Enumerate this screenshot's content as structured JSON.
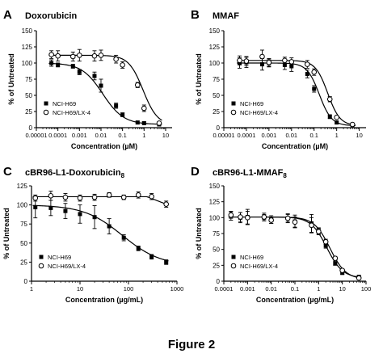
{
  "figure_caption": "Figure 2",
  "chart_data": [
    {
      "panel_letter": "A",
      "title_main": "Doxorubicin",
      "title_sub": "",
      "type": "scatter",
      "xlabel": "Concentration (µM)",
      "ylabel": "% of Untreated",
      "xscale": "log",
      "xlim": [
        1e-05,
        20
      ],
      "ylim": [
        0,
        150
      ],
      "xticks": [
        1e-05,
        0.0001,
        0.001,
        0.01,
        0.1,
        1,
        10
      ],
      "xtick_labels": [
        "0.00001",
        "0.0001",
        "0.001",
        "0.01",
        "0.1",
        "1",
        "10"
      ],
      "yticks": [
        0,
        25,
        50,
        75,
        100,
        125,
        150
      ],
      "ytick_labels": [
        "0",
        "25",
        "50",
        "75",
        "100",
        "125",
        "150"
      ],
      "legend_position": "bottom-left",
      "series": [
        {
          "name": "NCI-H69",
          "marker": "filled-square",
          "x": [
            5e-05,
            0.0001,
            0.0005,
            0.001,
            0.005,
            0.01,
            0.05,
            0.1,
            0.5,
            1,
            5
          ],
          "y": [
            100,
            97,
            95,
            86,
            80,
            65,
            34,
            20,
            8,
            7,
            5
          ],
          "err": [
            5,
            3,
            3,
            4,
            6,
            10,
            4,
            3,
            2,
            2,
            2
          ],
          "curve_ec50": 0.012,
          "curve_top": 100,
          "curve_bottom": 5,
          "curve_hill": 0.9
        },
        {
          "name": "NCI-H69/LX-4",
          "marker": "open-circle",
          "x": [
            5e-05,
            0.0001,
            0.0005,
            0.001,
            0.005,
            0.01,
            0.05,
            0.1,
            0.5,
            1,
            5
          ],
          "y": [
            113,
            111,
            110,
            112,
            111,
            112,
            106,
            97,
            66,
            30,
            7
          ],
          "err": [
            6,
            8,
            7,
            9,
            8,
            8,
            6,
            5,
            4,
            5,
            2
          ],
          "curve_ec50": 0.9,
          "curve_top": 112,
          "curve_bottom": 4,
          "curve_hill": 1.3
        }
      ]
    },
    {
      "panel_letter": "B",
      "title_main": "MMAF",
      "title_sub": "",
      "type": "scatter",
      "xlabel": "Concentration (µM)",
      "ylabel": "% of Untreated",
      "xscale": "log",
      "xlim": [
        1e-05,
        20
      ],
      "ylim": [
        0,
        150
      ],
      "xticks": [
        1e-05,
        0.0001,
        0.001,
        0.01,
        0.1,
        1,
        10
      ],
      "xtick_labels": [
        "0.00001",
        "0.0001",
        "0.001",
        "0.01",
        "0.1",
        "1",
        "10"
      ],
      "yticks": [
        0,
        25,
        50,
        75,
        100,
        125,
        150
      ],
      "ytick_labels": [
        "0",
        "25",
        "50",
        "75",
        "100",
        "125",
        "150"
      ],
      "legend_position": "bottom-left",
      "series": [
        {
          "name": "NCI-H69",
          "marker": "filled-square",
          "x": [
            5e-05,
            0.0001,
            0.0005,
            0.001,
            0.005,
            0.01,
            0.05,
            0.1,
            0.5,
            1,
            5
          ],
          "y": [
            100,
            101,
            98,
            100,
            97,
            95,
            83,
            60,
            17,
            8,
            4
          ],
          "err": [
            8,
            8,
            9,
            6,
            7,
            8,
            6,
            5,
            3,
            2,
            1
          ],
          "curve_ec50": 0.17,
          "curve_top": 100,
          "curve_bottom": 3,
          "curve_hill": 1.6
        },
        {
          "name": "NCI-H69/LX-4",
          "marker": "open-circle",
          "x": [
            5e-05,
            0.0001,
            0.0005,
            0.001,
            0.005,
            0.01,
            0.05,
            0.1,
            0.5,
            1,
            5
          ],
          "y": [
            104,
            103,
            110,
            101,
            104,
            102,
            98,
            86,
            44,
            16,
            5
          ],
          "err": [
            7,
            7,
            10,
            6,
            5,
            6,
            6,
            5,
            4,
            2,
            1
          ],
          "curve_ec50": 0.4,
          "curve_top": 104,
          "curve_bottom": 3,
          "curve_hill": 1.6
        }
      ]
    },
    {
      "panel_letter": "C",
      "title_main": "cBR96-L1-Doxorubicin",
      "title_sub": "8",
      "type": "scatter",
      "xlabel": "Concentration (µg/mL)",
      "ylabel": "% of Untreated",
      "xscale": "log",
      "xlim": [
        1,
        1000
      ],
      "ylim": [
        0,
        125
      ],
      "xticks": [
        1,
        10,
        100,
        1000
      ],
      "xtick_labels": [
        "1",
        "10",
        "100",
        "1000"
      ],
      "yticks": [
        0,
        25,
        50,
        75,
        100,
        125
      ],
      "ytick_labels": [
        "0",
        "25",
        "50",
        "75",
        "100",
        "125"
      ],
      "legend_position": "bottom-left",
      "series": [
        {
          "name": "NCI-H69",
          "marker": "filled-square",
          "x": [
            1.2,
            2.5,
            5,
            10,
            20,
            40,
            80,
            160,
            300,
            600
          ],
          "y": [
            97,
            96,
            92,
            88,
            84,
            72,
            57,
            43,
            32,
            25
          ],
          "err": [
            14,
            10,
            10,
            12,
            15,
            10,
            4,
            3,
            3,
            3
          ],
          "curve_ec50": 75,
          "curve_top": 100,
          "curve_bottom": 20,
          "curve_hill": 1.1
        },
        {
          "name": "NCI-H69/LX-4",
          "marker": "open-circle",
          "x": [
            1.2,
            2.5,
            5,
            10,
            20,
            40,
            80,
            160,
            300,
            600
          ],
          "y": [
            109,
            112,
            110,
            109,
            110,
            113,
            110,
            113,
            111,
            101
          ],
          "err": [
            4,
            6,
            5,
            4,
            4,
            3,
            3,
            4,
            4,
            4
          ],
          "curve": "flat"
        }
      ]
    },
    {
      "panel_letter": "D",
      "title_main": "cBR96-L1-MMAF",
      "title_sub": "8",
      "type": "scatter",
      "xlabel": "Concentration (µg/mL)",
      "ylabel": "% of Untreated",
      "xscale": "log",
      "xlim": [
        0.0001,
        100
      ],
      "ylim": [
        0,
        150
      ],
      "xticks": [
        0.0001,
        0.001,
        0.01,
        0.1,
        1,
        10,
        100
      ],
      "xtick_labels": [
        "0.0001",
        "0.001",
        "0.01",
        "0.1",
        "1",
        "10",
        "100"
      ],
      "yticks": [
        0,
        25,
        50,
        75,
        100,
        125,
        150
      ],
      "ytick_labels": [
        "0",
        "25",
        "50",
        "75",
        "100",
        "125",
        "150"
      ],
      "legend_position": "bottom-left",
      "series": [
        {
          "name": "NCI-H69",
          "marker": "filled-square",
          "x": [
            0.0002,
            0.0005,
            0.001,
            0.005,
            0.01,
            0.05,
            0.1,
            0.5,
            1,
            2,
            5,
            10,
            50
          ],
          "y": [
            103,
            100,
            101,
            100,
            97,
            99,
            94,
            91,
            79,
            56,
            28,
            13,
            7
          ],
          "err": [
            7,
            8,
            12,
            5,
            6,
            7,
            10,
            14,
            5,
            4,
            3,
            2,
            1
          ],
          "curve_ec50": 2.2,
          "curve_top": 101,
          "curve_bottom": 5,
          "curve_hill": 1.3
        },
        {
          "name": "NCI-H69/LX-4",
          "marker": "open-circle",
          "x": [
            0.0002,
            0.0005,
            0.001,
            0.005,
            0.01,
            0.05,
            0.1,
            0.5,
            1,
            2,
            5,
            10,
            50
          ],
          "y": [
            104,
            101,
            100,
            101,
            96,
            99,
            93,
            88,
            78,
            62,
            36,
            17,
            5
          ],
          "err": [
            5,
            7,
            10,
            6,
            5,
            6,
            8,
            12,
            5,
            4,
            3,
            2,
            1
          ],
          "curve_ec50": 3.0,
          "curve_top": 101,
          "curve_bottom": 3,
          "curve_hill": 1.3
        }
      ]
    }
  ]
}
